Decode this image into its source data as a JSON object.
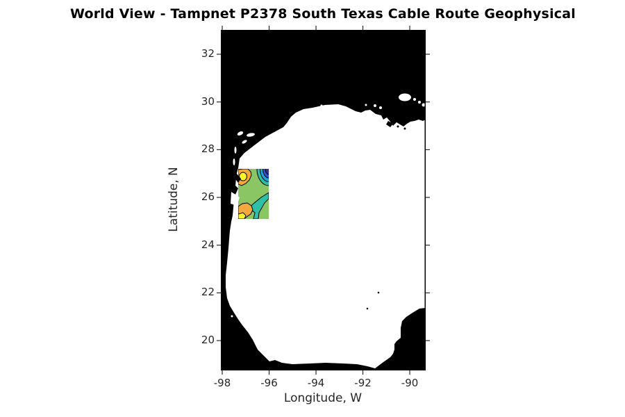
{
  "title": "World View - Tampnet P2378 South Texas Cable Route Geophysical",
  "axes": {
    "x_label": "Longitude, W",
    "y_label": "Latitude, N",
    "x_ticks": [
      -98,
      -96,
      -94,
      -92,
      -90
    ],
    "y_ticks": [
      32,
      30,
      28,
      26,
      24,
      22,
      20
    ],
    "lon_range": [
      -98.06,
      -89.32
    ],
    "lat_range": [
      18.75,
      33.02
    ]
  },
  "map": {
    "region": "Gulf of Mexico",
    "land_style": "black silhouette",
    "water_style": "white",
    "survey_area": {
      "label": "survey contour patch",
      "lon_range": [
        -97.3,
        -96.0
      ],
      "lat_range": [
        25.1,
        27.2
      ]
    }
  },
  "colors": {
    "land": "#000000",
    "water": "#ffffff",
    "contour_line": "#000000",
    "axis": "#262626",
    "title_text": "#000000",
    "band_yellow": "#FBF32A",
    "band_orange": "#F4A93E",
    "band_green": "#8AC764",
    "band_teal": "#2DBFA7",
    "band_cyan": "#21A3D6",
    "band_blue": "#2C57CE",
    "band_darkblue": "#383295"
  },
  "chart_data": {
    "type": "heatmap",
    "subtype": "filled-contour map overlay on coastline basemap",
    "title": "World View - Tampnet P2378 South Texas Cable Route Geophysical",
    "xlabel": "Longitude, W",
    "ylabel": "Latitude, N",
    "xlim": [
      -98.06,
      -89.32
    ],
    "ylim": [
      18.75,
      33.02
    ],
    "x_ticks": [
      -98,
      -96,
      -94,
      -92,
      -90
    ],
    "y_ticks": [
      32,
      30,
      28,
      26,
      24,
      22,
      20
    ],
    "grid": false,
    "legend": "none",
    "basemap": {
      "region": "Gulf of Mexico",
      "land_color": "#000000",
      "water_color": "#ffffff",
      "notable_features": [
        "Texas/Louisiana north coast near 29.5-29.9N",
        "Mississippi delta near -90W",
        "Lake Pontchartrain white patch near -90.1W 30.2N",
        "Texas coastal bays near -96.5W 28.5N",
        "Mexican coast curving to Bay of Campeche near 19N",
        "Yucatan shelf black wedge in lower right corner"
      ]
    },
    "survey_patch": {
      "lon_range": [
        -97.3,
        -96.0
      ],
      "lat_range": [
        25.1,
        27.2
      ],
      "contour_bands_low_to_high": [
        "#383295",
        "#2C57CE",
        "#21A3D6",
        "#2DBFA7",
        "#8AC764",
        "#F4A93E",
        "#FBF32A"
      ],
      "pattern": "low (dark blue/cyan) bands in the northeast corner; green background; high (orange with yellow cores) lobes along the western/coastal side at top-left and bottom-left; teal band crossing lower middle"
    }
  }
}
